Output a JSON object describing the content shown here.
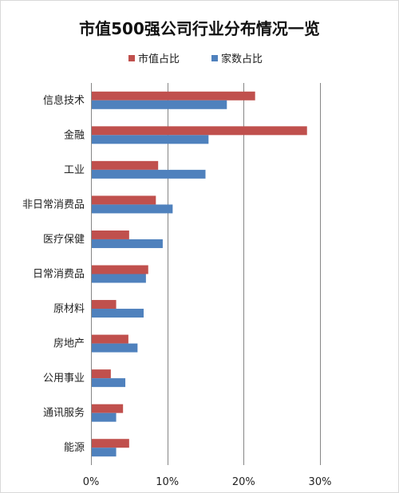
{
  "chart_data": {
    "type": "bar",
    "orientation": "horizontal",
    "title": "市值500强公司行业分布情况一览",
    "categories": [
      "信息技术",
      "金融",
      "工业",
      "非日常消费品",
      "医疗保健",
      "日常消费品",
      "原材料",
      "房地产",
      "公用事业",
      "通讯服务",
      "能源"
    ],
    "series": [
      {
        "name": "市值占比",
        "color": "#c0504d",
        "values": [
          21.5,
          28.3,
          8.8,
          8.5,
          5.0,
          7.5,
          3.3,
          4.9,
          2.6,
          4.2,
          5.0
        ]
      },
      {
        "name": "家数占比",
        "color": "#4f81bd",
        "values": [
          17.8,
          15.4,
          15.0,
          10.7,
          9.4,
          7.2,
          6.9,
          6.1,
          4.5,
          3.3,
          3.3
        ]
      }
    ],
    "xlim": [
      0,
      30
    ],
    "xticks": [
      0,
      10,
      20,
      30
    ],
    "tick_labels": [
      "0%",
      "10%",
      "20%",
      "30%"
    ],
    "xlabel": "",
    "ylabel": "",
    "grid": true,
    "legend_position": "top"
  }
}
